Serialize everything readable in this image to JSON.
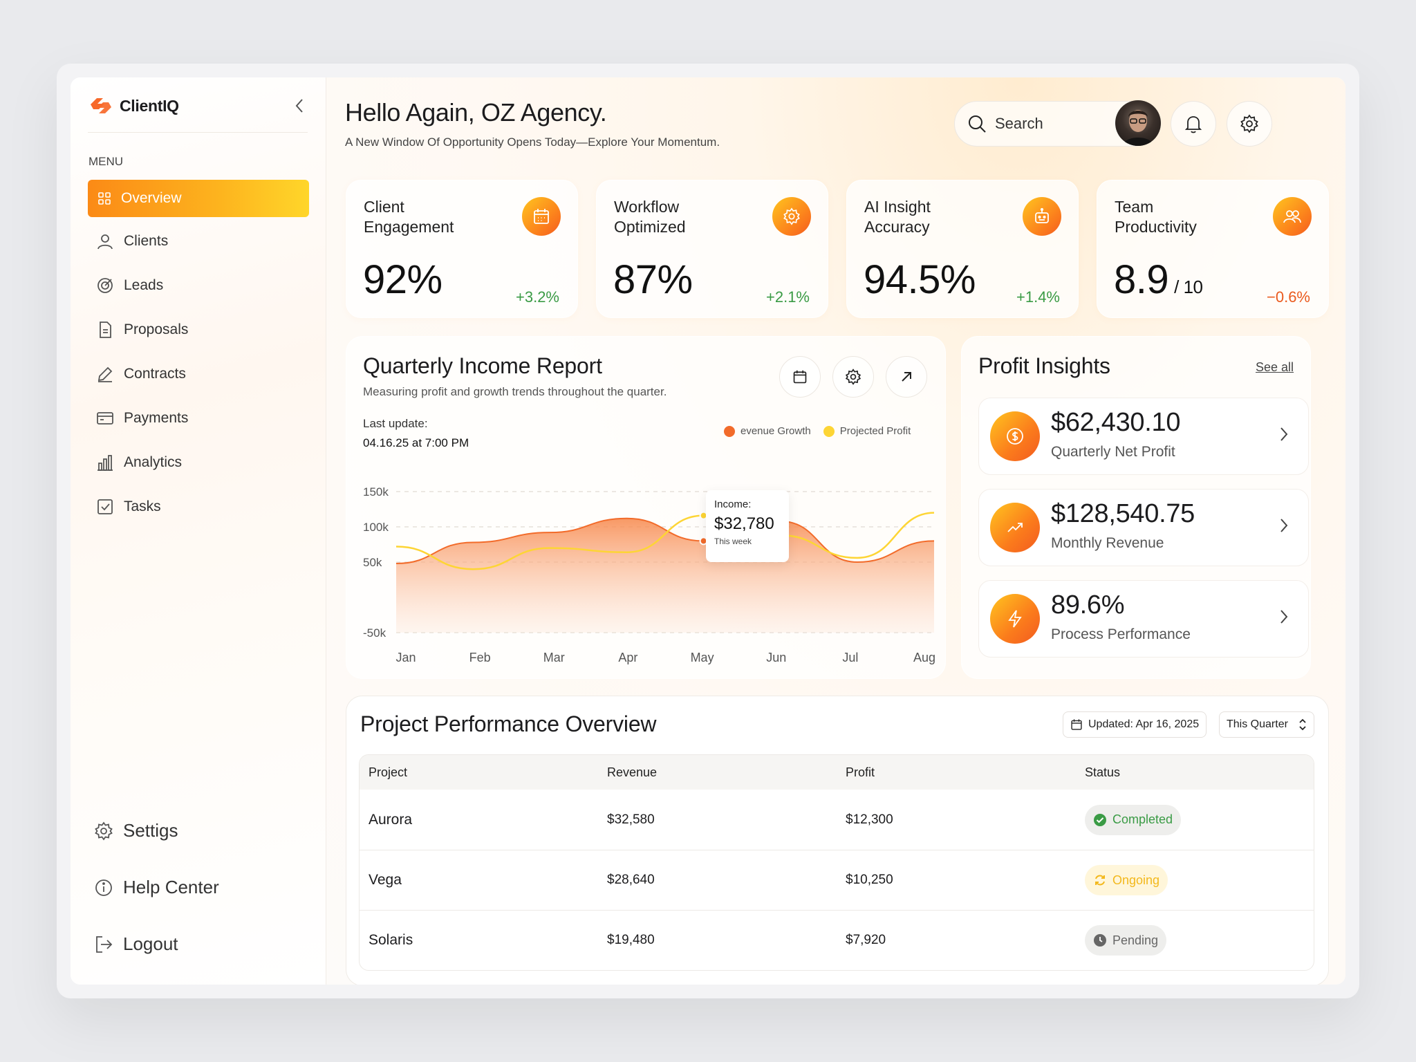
{
  "brand": {
    "name": "ClientIQ"
  },
  "sidebar": {
    "menu_label": "MENU",
    "items": [
      {
        "label": "Overview",
        "icon": "grid-icon",
        "active": true
      },
      {
        "label": "Clients",
        "icon": "user-icon"
      },
      {
        "label": "Leads",
        "icon": "target-icon"
      },
      {
        "label": "Proposals",
        "icon": "document-icon"
      },
      {
        "label": "Contracts",
        "icon": "pen-icon"
      },
      {
        "label": "Payments",
        "icon": "wallet-icon"
      },
      {
        "label": "Analytics",
        "icon": "bar-chart-icon"
      },
      {
        "label": "Tasks",
        "icon": "checkbox-icon"
      }
    ],
    "bottom": [
      {
        "label": "Settigs",
        "icon": "gear-icon"
      },
      {
        "label": "Help Center",
        "icon": "info-icon"
      },
      {
        "label": "Logout",
        "icon": "logout-icon"
      }
    ]
  },
  "header": {
    "title": "Hello Again, OZ Agency.",
    "subtitle": "A New Window Of Opportunity Opens Today—Explore Your Momentum.",
    "search_label": "Search"
  },
  "stats": [
    {
      "title": "Client Engagement",
      "value": "92%",
      "suffix": "",
      "delta": "+3.2%",
      "trend": "up",
      "icon": "calendar-icon"
    },
    {
      "title": "Workflow Optimized",
      "value": "87%",
      "suffix": "",
      "delta": "+2.1%",
      "trend": "up",
      "icon": "gear-icon"
    },
    {
      "title": "AI Insight Accuracy",
      "value": "94.5%",
      "suffix": "",
      "delta": "+1.4%",
      "trend": "up",
      "icon": "robot-icon"
    },
    {
      "title": "Team Productivity",
      "value": "8.9",
      "suffix": "/ 10",
      "delta": "−0.6%",
      "trend": "down",
      "icon": "team-icon"
    }
  ],
  "report": {
    "title": "Quarterly Income Report",
    "subtitle": "Measuring profit and growth trends throughout the quarter.",
    "last_update_label": "Last update:",
    "last_update_value": "04.16.25 at 7:00 PM",
    "tooltip": {
      "label": "Income:",
      "value": "$32,780",
      "sub": "This week"
    }
  },
  "chart_data": {
    "type": "area",
    "categories": [
      "Jan",
      "Feb",
      "Mar",
      "Apr",
      "May",
      "Jun",
      "Jul",
      "Aug"
    ],
    "ytick_labels": [
      "150k",
      "100k",
      "50k",
      "-50k"
    ],
    "series": [
      {
        "name": "evenue Growth",
        "color": "#f26b2a",
        "values": [
          48,
          78,
          92,
          112,
          80,
          108,
          50,
          80
        ]
      },
      {
        "name": "Projected Profit",
        "color": "#fdd535",
        "values": [
          72,
          40,
          70,
          64,
          116,
          88,
          56,
          120
        ]
      }
    ]
  },
  "profit": {
    "title": "Profit Insights",
    "see_all": "See all",
    "items": [
      {
        "value": "$62,430.10",
        "label": "Quarterly Net Profit",
        "icon": "dollar-icon"
      },
      {
        "value": "$128,540.75",
        "label": "Monthly Revenue",
        "icon": "trend-up-icon"
      },
      {
        "value": "89.6%",
        "label": "Process Performance",
        "icon": "lightning-icon"
      }
    ]
  },
  "projects": {
    "title": "Project Performance Overview",
    "updated": "Updated: Apr 16, 2025",
    "period": "This Quarter",
    "columns": [
      "Project",
      "Revenue",
      "Profit",
      "Status"
    ],
    "rows": [
      {
        "project": "Aurora",
        "revenue": "$32,580",
        "profit": "$12,300",
        "status": "Completed"
      },
      {
        "project": "Vega",
        "revenue": "$28,640",
        "profit": "$10,250",
        "status": "Ongoing"
      },
      {
        "project": "Solaris",
        "revenue": "$19,480",
        "profit": "$7,920",
        "status": "Pending"
      }
    ]
  }
}
